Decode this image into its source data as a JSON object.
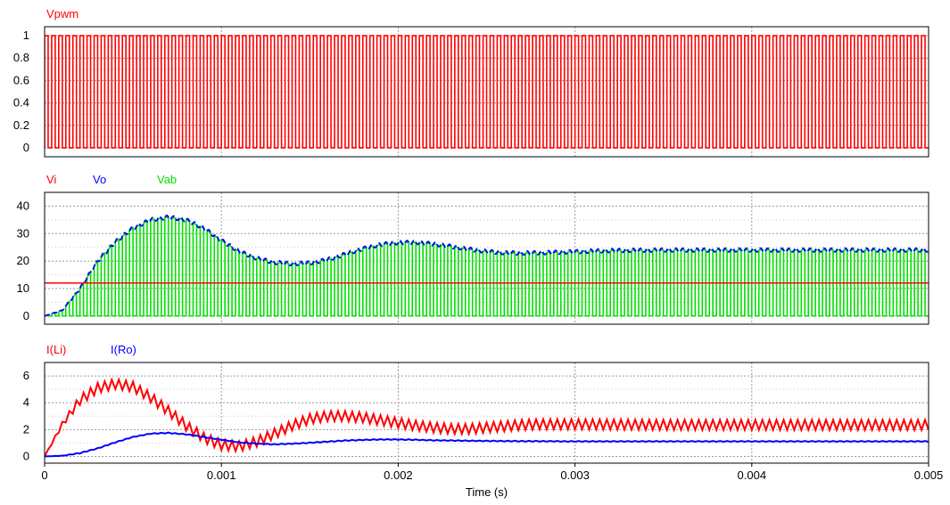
{
  "chart_data": [
    {
      "type": "line",
      "legend": [
        {
          "label": "Vpwm",
          "color": "#ff0000"
        }
      ],
      "ylim": [
        -0.08,
        1.08
      ],
      "yticks": [
        0,
        0.2,
        0.4,
        0.6,
        0.8,
        1
      ],
      "ytick_labels": [
        "0",
        "0.2",
        "0.4",
        "0.6",
        "0.8",
        "1"
      ],
      "grid": true,
      "series": [
        {
          "color": "#ff0000",
          "kind": "pwm",
          "low": 0,
          "high": 1,
          "period": 4e-05,
          "duty": 0.5
        }
      ]
    },
    {
      "type": "line",
      "legend": [
        {
          "label": "Vi",
          "color": "#ff0000"
        },
        {
          "label": "Vo",
          "color": "#0000ff"
        },
        {
          "label": "Vab",
          "color": "#00e000"
        }
      ],
      "ylim": [
        -3,
        45
      ],
      "yticks": [
        0,
        10,
        20,
        30,
        40
      ],
      "ytick_labels": [
        "0",
        "10",
        "20",
        "30",
        "40"
      ],
      "grid": true,
      "series": [
        {
          "color": "#00e000",
          "kind": "switched",
          "envelope_of": "vo",
          "period": 4e-05,
          "duty": 0.5
        },
        {
          "color": "#0000ff",
          "kind": "envelope",
          "x": [
            0,
            0.0001,
            0.0002,
            0.0003,
            0.0004,
            0.0005,
            0.0006,
            0.0007,
            0.0008,
            0.0009,
            0.001,
            0.0011,
            0.0012,
            0.0013,
            0.0014,
            0.0015,
            0.0016,
            0.0017,
            0.0018,
            0.0019,
            0.002,
            0.0021,
            0.0022,
            0.0023,
            0.0024,
            0.0025,
            0.0026,
            0.0027,
            0.0028,
            0.003,
            0.0032,
            0.0035,
            0.004,
            0.0045,
            0.005
          ],
          "y": [
            0,
            2,
            10,
            20,
            27,
            32,
            35,
            36,
            35,
            32,
            27.5,
            23.5,
            21,
            19.5,
            19,
            19.3,
            20.5,
            22.5,
            24.5,
            26,
            26.7,
            26.8,
            26.2,
            25.3,
            24.3,
            23.5,
            23,
            22.9,
            23,
            23.4,
            23.8,
            24,
            24,
            24,
            24
          ],
          "ripple": 0.7
        },
        {
          "color": "#ff0000",
          "kind": "line",
          "x": [
            0,
            0.005
          ],
          "y": [
            12,
            12
          ]
        }
      ]
    },
    {
      "type": "line",
      "legend": [
        {
          "label": "I(Li)",
          "color": "#ff0000"
        },
        {
          "label": "I(Ro)",
          "color": "#0000ff"
        }
      ],
      "ylim": [
        -0.5,
        7
      ],
      "yticks": [
        0,
        2,
        4,
        6
      ],
      "ytick_labels": [
        "0",
        "2",
        "4",
        "6"
      ],
      "xlim": [
        0,
        0.005
      ],
      "xticks": [
        0,
        0.001,
        0.002,
        0.003,
        0.004,
        0.005
      ],
      "xtick_labels": [
        "0",
        "0.001",
        "0.002",
        "0.003",
        "0.004",
        "0.005"
      ],
      "xlabel": "Time (s)",
      "grid": true,
      "series": [
        {
          "color": "#ff0000",
          "kind": "rippled",
          "x": [
            0,
            0.0001,
            0.0002,
            0.0003,
            0.0004,
            0.0005,
            0.0006,
            0.0007,
            0.0008,
            0.0009,
            0.001,
            0.0011,
            0.0012,
            0.0013,
            0.0014,
            0.0015,
            0.0016,
            0.0017,
            0.0018,
            0.0019,
            0.002,
            0.0021,
            0.0022,
            0.0023,
            0.0024,
            0.0025,
            0.0026,
            0.0027,
            0.0028,
            0.003,
            0.0035,
            0.004,
            0.0045,
            0.005
          ],
          "y": [
            0,
            2.4,
            4.2,
            5.1,
            5.4,
            5.2,
            4.4,
            3.4,
            2.3,
            1.4,
            0.85,
            0.75,
            1.1,
            1.7,
            2.3,
            2.8,
            3,
            3,
            2.9,
            2.7,
            2.5,
            2.3,
            2.15,
            2.05,
            2.05,
            2.15,
            2.25,
            2.35,
            2.4,
            2.4,
            2.35,
            2.35,
            2.35,
            2.35
          ],
          "ripple": 0.75,
          "period": 4e-05
        },
        {
          "color": "#0000ff",
          "kind": "rippled",
          "x": [
            0,
            0.0001,
            0.0002,
            0.0003,
            0.0004,
            0.0005,
            0.0006,
            0.0007,
            0.0008,
            0.0009,
            0.001,
            0.0011,
            0.0012,
            0.0013,
            0.0014,
            0.0015,
            0.0016,
            0.0017,
            0.0018,
            0.0019,
            0.002,
            0.0021,
            0.0022,
            0.0025,
            0.003,
            0.0035,
            0.004,
            0.0045,
            0.005
          ],
          "y": [
            0,
            0.05,
            0.25,
            0.6,
            1.05,
            1.45,
            1.7,
            1.75,
            1.65,
            1.45,
            1.25,
            1.05,
            0.95,
            0.9,
            0.95,
            1.02,
            1.1,
            1.18,
            1.23,
            1.26,
            1.26,
            1.24,
            1.2,
            1.15,
            1.12,
            1.12,
            1.12,
            1.12,
            1.12
          ],
          "ripple": 0.06,
          "period": 4e-05
        }
      ]
    }
  ]
}
